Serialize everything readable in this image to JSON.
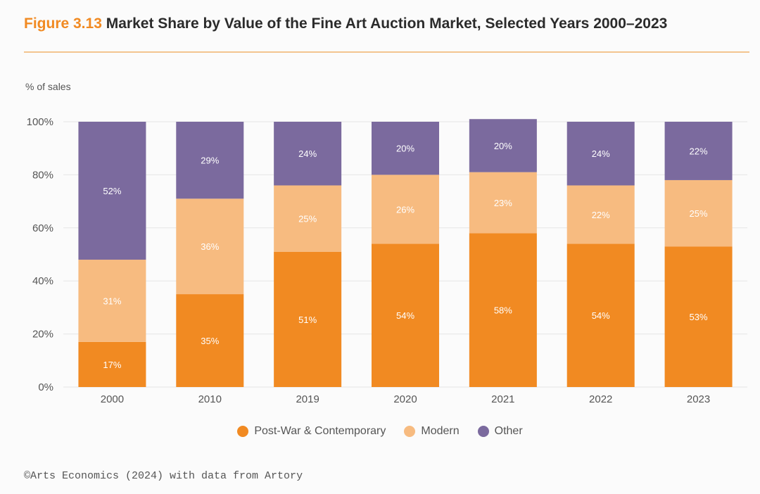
{
  "header": {
    "figure_label": "Figure 3.13",
    "title": "Market Share by Value of the Fine Art Auction Market, Selected Years 2000–2023"
  },
  "footer": {
    "source": "©Arts Economics (2024) with data from Artory"
  },
  "chart_data": {
    "type": "bar",
    "stacked": true,
    "ylabel": "% of sales",
    "xlabel": "",
    "ylim": [
      0,
      100
    ],
    "y_ticks": [
      0,
      20,
      40,
      60,
      80,
      100
    ],
    "y_tick_labels": [
      "0%",
      "20%",
      "40%",
      "60%",
      "80%",
      "100%"
    ],
    "grid": true,
    "legend_position": "bottom-center",
    "categories": [
      "2000",
      "2010",
      "2019",
      "2020",
      "2021",
      "2022",
      "2023"
    ],
    "series": [
      {
        "name": "Post-War & Contemporary",
        "color": "#f18a22",
        "values": [
          17,
          35,
          51,
          54,
          58,
          54,
          53
        ],
        "labels": [
          "17%",
          "35%",
          "51%",
          "54%",
          "58%",
          "54%",
          "53%"
        ]
      },
      {
        "name": "Modern",
        "color": "#f7bb80",
        "values": [
          31,
          36,
          25,
          26,
          23,
          22,
          25
        ],
        "labels": [
          "31%",
          "36%",
          "25%",
          "26%",
          "23%",
          "22%",
          "25%"
        ]
      },
      {
        "name": "Other",
        "color": "#7b6a9e",
        "values": [
          52,
          29,
          24,
          20,
          20,
          24,
          22
        ],
        "labels": [
          "52%",
          "29%",
          "24%",
          "20%",
          "20%",
          "24%",
          "22%"
        ]
      }
    ]
  }
}
